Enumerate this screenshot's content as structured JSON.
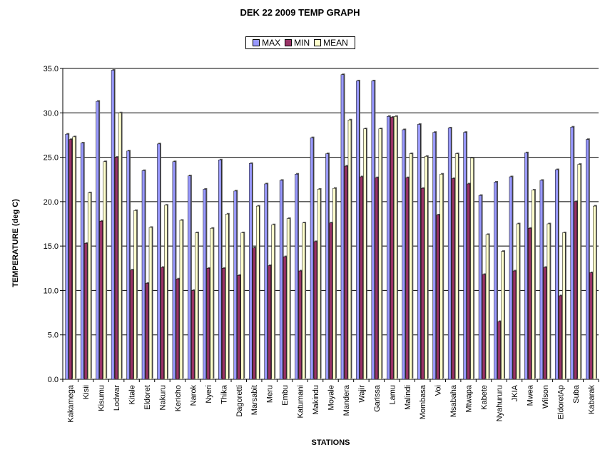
{
  "chart_data": {
    "type": "bar",
    "title": "DEK 22 2009 TEMP GRAPH",
    "xlabel": "STATIONS",
    "ylabel": "TEMPERATURE (deg C)",
    "ylim": [
      0,
      35
    ],
    "yticks": [
      "0.0",
      "5.0",
      "10.0",
      "15.0",
      "20.0",
      "25.0",
      "30.0",
      "35.0"
    ],
    "grid": true,
    "legend": "top-center",
    "categories": [
      "Kakamega",
      "Kisii",
      "Kisumu",
      "Lodwar",
      "Kitale",
      "Eldoret",
      "Nakuru",
      "Kericho",
      "Narok",
      "Nyeri",
      "Thika",
      "Dagoretti",
      "Marsabit",
      "Meru",
      "Embu",
      "Katumani",
      "Makindu",
      "Moyale",
      "Mandera",
      "Wajir",
      "Garissa",
      "Lamu",
      "Malindi",
      "Mombasa",
      "Voi",
      "Msabaha",
      "Mtwapa",
      "Kabete",
      "Nyahururu",
      "JKIA",
      "Mwea",
      "Wilson",
      "EldoretAp",
      "Suba",
      "Kabarak"
    ],
    "series": [
      {
        "name": "MAX",
        "color": "#9999ff",
        "values": [
          27.6,
          26.6,
          31.3,
          34.8,
          25.7,
          23.5,
          26.5,
          24.5,
          22.9,
          21.4,
          24.7,
          21.2,
          24.3,
          22.0,
          22.4,
          23.1,
          27.2,
          25.4,
          34.3,
          33.6,
          33.6,
          29.6,
          28.1,
          28.7,
          27.8,
          28.3,
          27.8,
          20.7,
          22.2,
          22.8,
          25.5,
          22.4,
          23.6,
          28.4,
          27.0
        ]
      },
      {
        "name": "MIN",
        "color": "#993366",
        "values": [
          27.0,
          15.3,
          17.8,
          25.0,
          12.3,
          10.8,
          12.6,
          11.3,
          10.0,
          12.5,
          12.5,
          11.7,
          14.8,
          12.8,
          13.8,
          12.2,
          15.5,
          17.6,
          24.0,
          22.8,
          22.7,
          29.5,
          22.7,
          21.5,
          18.5,
          22.6,
          22.0,
          11.8,
          6.5,
          12.2,
          17.0,
          12.6,
          9.4,
          20.0,
          12.0
        ]
      },
      {
        "name": "MEAN",
        "color": "#ffffcc",
        "values": [
          27.3,
          21.0,
          24.5,
          30.0,
          19.0,
          17.1,
          19.6,
          17.9,
          16.5,
          17.0,
          18.6,
          16.5,
          19.5,
          17.4,
          18.1,
          17.6,
          21.4,
          21.5,
          29.2,
          28.2,
          28.2,
          29.6,
          25.4,
          25.1,
          23.1,
          25.4,
          24.9,
          16.3,
          14.4,
          17.5,
          21.3,
          17.5,
          16.5,
          24.2,
          19.5
        ]
      }
    ]
  }
}
